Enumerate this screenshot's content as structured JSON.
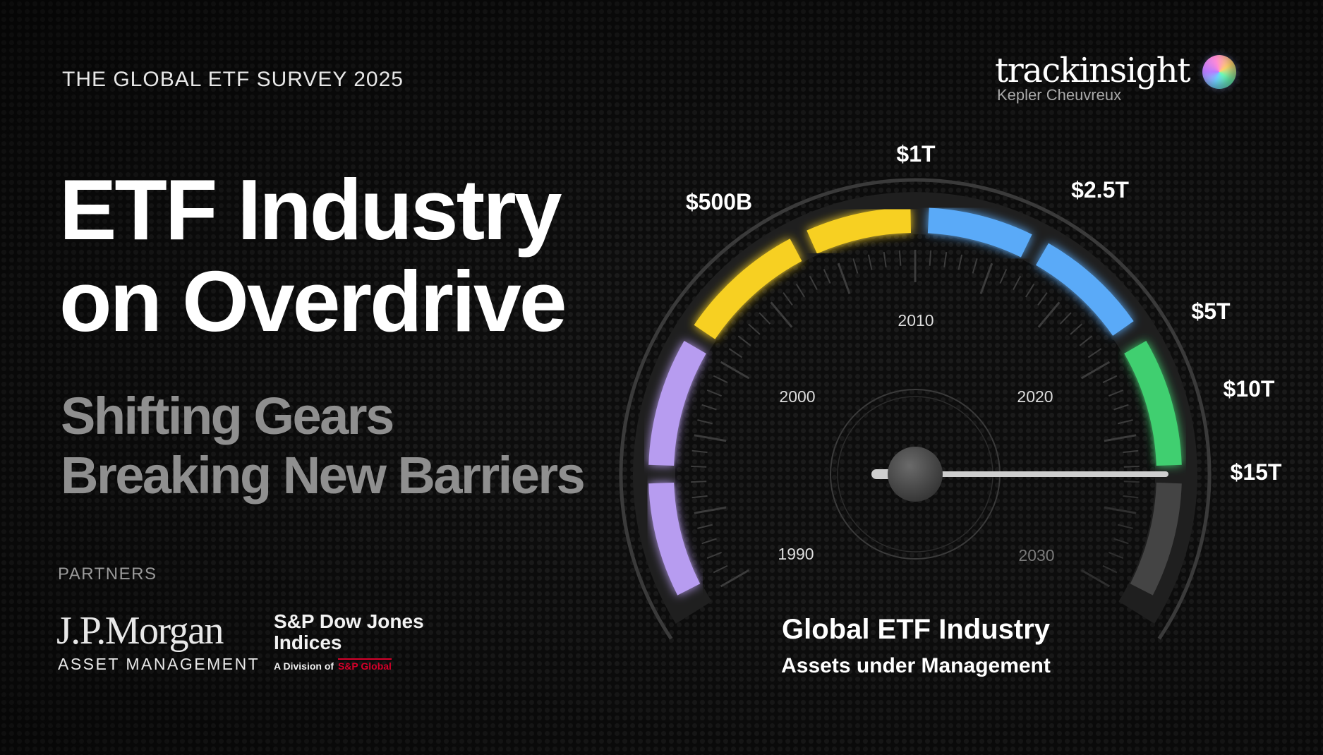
{
  "survey_title": "THE GLOBAL ETF SURVEY 2025",
  "headline": {
    "line1": "ETF Industry",
    "line2": "on Overdrive"
  },
  "subhead": {
    "line1": "Shifting Gears",
    "line2": "Breaking New Barriers"
  },
  "brand": {
    "name": "trackinsight",
    "sub": "Kepler Cheuvreux"
  },
  "partners": {
    "label": "PARTNERS",
    "jpmorgan": {
      "name": "J.P.Morgan",
      "sub": "ASSET MANAGEMENT"
    },
    "spdji": {
      "line1": "S&P Dow Jones",
      "line2": "Indices",
      "division_prefix": "A Division of",
      "division_brand": "S&P Global"
    }
  },
  "gauge": {
    "value_labels": [
      "$500B",
      "$1T",
      "$2.5T",
      "$5T",
      "$10T",
      "$15T"
    ],
    "year_labels": [
      "1990",
      "2000",
      "2010",
      "2020",
      "2030"
    ],
    "caption_title": "Global ETF Industry",
    "caption_sub": "Assets under Management",
    "needle_reading": "$15T",
    "colors": {
      "purple": "#b79cf0",
      "yellow": "#f7d020",
      "blue": "#5aaaf8",
      "green": "#3fcf6f",
      "inactive": "#444444"
    }
  }
}
